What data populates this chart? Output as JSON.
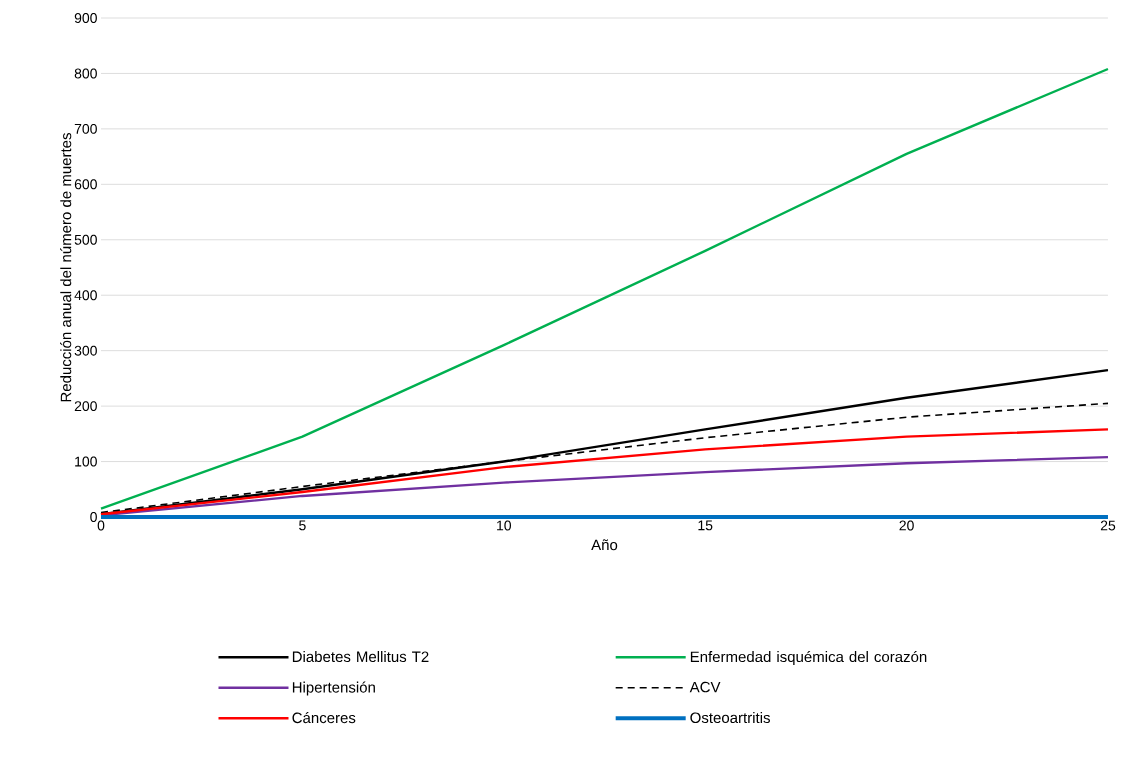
{
  "chart_data": {
    "type": "line",
    "xlabel": "Año",
    "ylabel": "Reducción anual del número de muertes",
    "x": [
      0,
      5,
      10,
      15,
      20,
      25
    ],
    "xlim": [
      0,
      25
    ],
    "xticks": [
      0,
      5,
      10,
      15,
      20,
      25
    ],
    "ylim": [
      0,
      900
    ],
    "yticks": [
      0,
      100,
      200,
      300,
      400,
      500,
      600,
      700,
      800,
      900
    ],
    "grid": "y",
    "legend": "bottom",
    "series": [
      {
        "name": "Diabetes Mellitus T2",
        "color": "#000000",
        "values": [
          5,
          50,
          100,
          158,
          215,
          265
        ]
      },
      {
        "name": "Enfermedad isquémica del corazón",
        "color": "#00b050",
        "values": [
          15,
          145,
          310,
          480,
          655,
          808
        ]
      },
      {
        "name": "Hipertensión",
        "color": "#7030a0",
        "values": [
          3,
          38,
          62,
          81,
          97,
          108
        ]
      },
      {
        "name": "ACV",
        "color": "#000000",
        "line_style": "dashed",
        "values": [
          8,
          55,
          100,
          143,
          180,
          205
        ]
      },
      {
        "name": "Cánceres",
        "color": "#ff0000",
        "values": [
          5,
          45,
          90,
          122,
          145,
          158
        ]
      },
      {
        "name": "Osteoartritis",
        "color": "#0070c0",
        "values": [
          0,
          0,
          0,
          0,
          0,
          0
        ]
      }
    ]
  }
}
